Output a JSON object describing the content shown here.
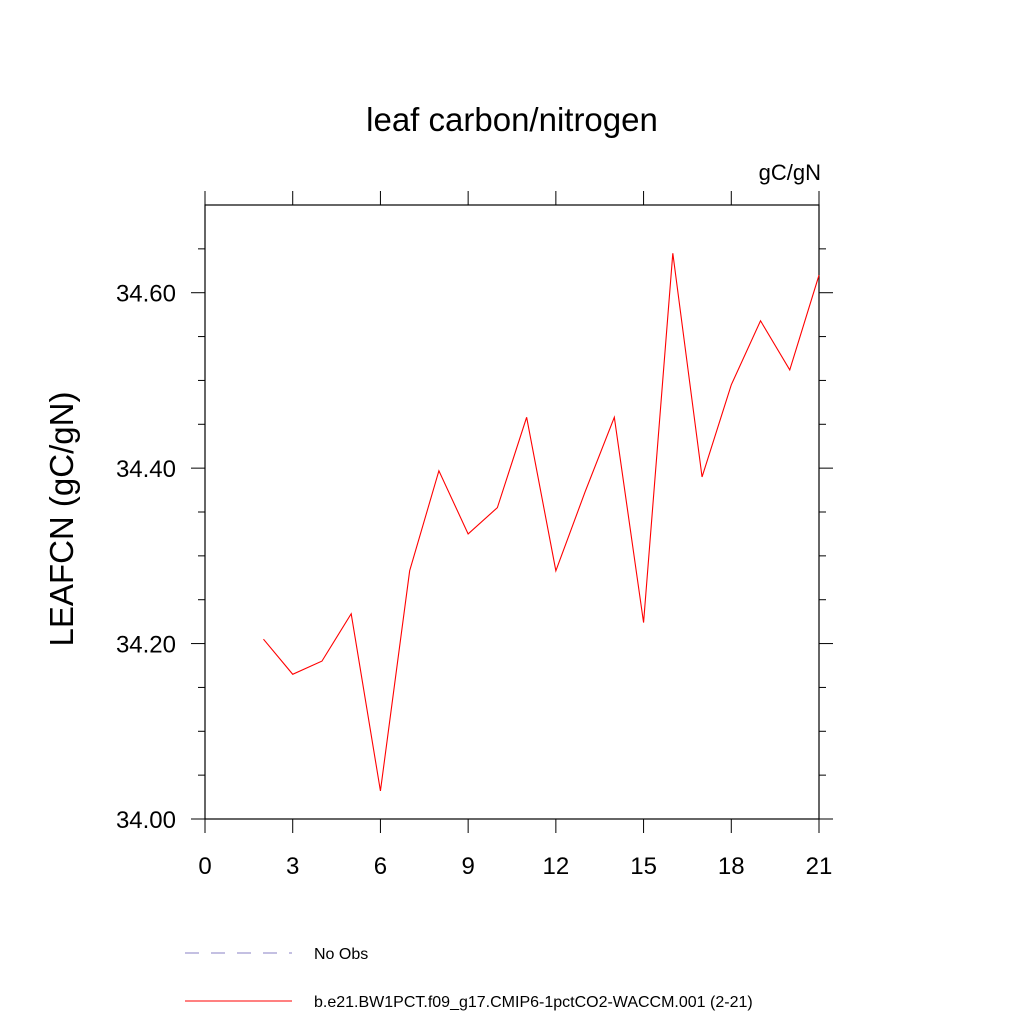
{
  "chart_data": {
    "type": "line",
    "title": "leaf carbon/nitrogen",
    "units_label": "gC/gN",
    "ylabel": "LEAFCN  (gC/gN)",
    "xlabel": "",
    "xlim": [
      0,
      21
    ],
    "ylim": [
      34.0,
      34.7
    ],
    "x_ticks": [
      0,
      3,
      6,
      9,
      12,
      15,
      18,
      21
    ],
    "x_tick_labels": [
      "0",
      "3",
      "6",
      "9",
      "12",
      "15",
      "18",
      "21"
    ],
    "y_ticks": [
      34.0,
      34.2,
      34.4,
      34.6
    ],
    "y_tick_labels": [
      "34.00",
      "34.20",
      "34.40",
      "34.60"
    ],
    "series": [
      {
        "name": "b.e21.BW1PCT.f09_g17.CMIP6-1pctCO2-WACCM.001 (2-21)",
        "color": "#ff0000",
        "x": [
          2,
          3,
          4,
          5,
          6,
          7,
          8,
          9,
          10,
          11,
          12,
          13,
          14,
          15,
          16,
          17,
          18,
          19,
          20,
          21
        ],
        "y": [
          34.205,
          34.165,
          34.18,
          34.234,
          34.032,
          34.283,
          34.397,
          34.325,
          34.355,
          34.458,
          34.283,
          34.373,
          34.458,
          34.224,
          34.645,
          34.39,
          34.495,
          34.568,
          34.512,
          34.62
        ]
      }
    ],
    "legend": {
      "placement": "bottom",
      "entries": [
        {
          "label": "No Obs",
          "color": "#8a82c4",
          "style": "dashed"
        },
        {
          "label": "b.e21.BW1PCT.f09_g17.CMIP6-1pctCO2-WACCM.001 (2-21)",
          "color": "#ff0000",
          "style": "solid"
        }
      ]
    }
  }
}
